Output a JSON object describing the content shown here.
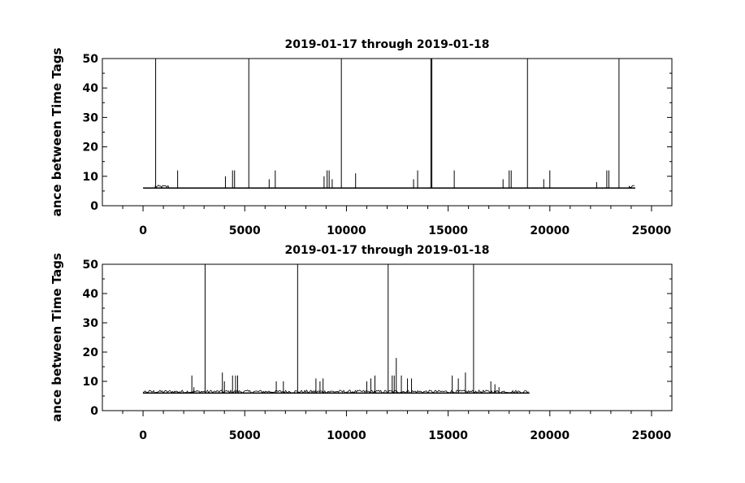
{
  "chart_data": [
    {
      "type": "line",
      "title": "2019-01-17 through 2019-01-18",
      "xlabel": "",
      "ylabel": "ance between Time Tags",
      "xlim": [
        -2000,
        26000
      ],
      "ylim": [
        0,
        50
      ],
      "xticks": [
        0,
        5000,
        10000,
        15000,
        20000,
        25000
      ],
      "xtick_labels": [
        "0",
        "5000",
        "10000",
        "15000",
        "20000",
        "25000"
      ],
      "yticks": [
        0,
        10,
        20,
        30,
        40,
        50
      ],
      "ytick_labels": [
        "0",
        "10",
        "20",
        "30",
        "40",
        "50"
      ],
      "grid": false,
      "series": [
        {
          "baseline": 6,
          "x_range": [
            0,
            24200
          ],
          "dense_segments": [
            [
              600,
              1300
            ],
            [
              23900,
              24200
            ]
          ],
          "dense_level": 7,
          "spikes": [
            [
              620,
              50
            ],
            [
              1700,
              12
            ],
            [
              4050,
              10
            ],
            [
              4400,
              12
            ],
            [
              4500,
              12
            ],
            [
              5200,
              50
            ],
            [
              6200,
              9
            ],
            [
              6500,
              12
            ],
            [
              8900,
              10
            ],
            [
              9050,
              12
            ],
            [
              9150,
              12
            ],
            [
              9300,
              9
            ],
            [
              9750,
              50
            ],
            [
              10450,
              11
            ],
            [
              13300,
              9
            ],
            [
              13500,
              12
            ],
            [
              14150,
              50
            ],
            [
              14200,
              50
            ],
            [
              15300,
              12
            ],
            [
              17700,
              9
            ],
            [
              18000,
              12
            ],
            [
              18100,
              12
            ],
            [
              18900,
              50
            ],
            [
              19700,
              9
            ],
            [
              20000,
              12
            ],
            [
              22300,
              8
            ],
            [
              22800,
              12
            ],
            [
              22900,
              12
            ],
            [
              23400,
              50
            ]
          ]
        }
      ]
    },
    {
      "type": "line",
      "title": "2019-01-17 through 2019-01-18",
      "xlabel": "",
      "ylabel": "ance between Time Tags",
      "xlim": [
        -2000,
        26000
      ],
      "ylim": [
        0,
        50
      ],
      "xticks": [
        0,
        5000,
        10000,
        15000,
        20000,
        25000
      ],
      "xtick_labels": [
        "0",
        "5000",
        "10000",
        "15000",
        "20000",
        "25000"
      ],
      "yticks": [
        0,
        10,
        20,
        30,
        40,
        50
      ],
      "ytick_labels": [
        "0",
        "10",
        "20",
        "30",
        "40",
        "50"
      ],
      "grid": false,
      "series": [
        {
          "baseline": 6,
          "x_range": [
            0,
            19000
          ],
          "dense_segments": [
            [
              0,
              19000
            ]
          ],
          "dense_level": 7,
          "spikes": [
            [
              2400,
              12
            ],
            [
              2500,
              8
            ],
            [
              3050,
              50
            ],
            [
              3900,
              13
            ],
            [
              4000,
              10
            ],
            [
              4400,
              12
            ],
            [
              4550,
              12
            ],
            [
              4650,
              12
            ],
            [
              6550,
              10
            ],
            [
              6900,
              10
            ],
            [
              7600,
              50
            ],
            [
              8500,
              11
            ],
            [
              8700,
              10
            ],
            [
              8850,
              11
            ],
            [
              11000,
              10
            ],
            [
              11200,
              11
            ],
            [
              11400,
              12
            ],
            [
              12050,
              50
            ],
            [
              12250,
              12
            ],
            [
              12350,
              12
            ],
            [
              12450,
              18
            ],
            [
              12700,
              12
            ],
            [
              13000,
              11
            ],
            [
              13200,
              11
            ],
            [
              15200,
              12
            ],
            [
              15500,
              11
            ],
            [
              15850,
              13
            ],
            [
              16250,
              50
            ],
            [
              17100,
              10
            ],
            [
              17300,
              9
            ],
            [
              17500,
              8
            ]
          ]
        }
      ]
    }
  ]
}
